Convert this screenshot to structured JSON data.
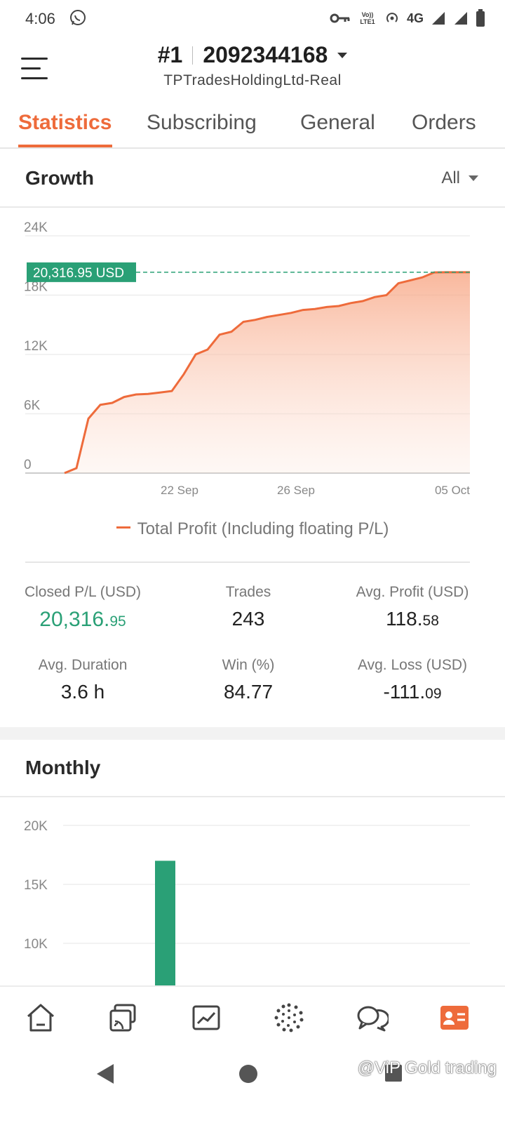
{
  "status_bar": {
    "time": "4:06",
    "network": "4G",
    "volte": "Vo)) LTE1"
  },
  "header": {
    "rank": "#1",
    "account_number": "2092344168",
    "server": "TPTradesHoldingLtd-Real"
  },
  "tabs": [
    {
      "label": "Statistics",
      "active": true
    },
    {
      "label": "Subscribing",
      "active": false
    },
    {
      "label": "General",
      "active": false
    },
    {
      "label": "Orders",
      "active": false
    }
  ],
  "growth": {
    "title": "Growth",
    "range": "All",
    "current_label": "20,316.95 USD",
    "legend": "Total Profit (Including floating P/L)"
  },
  "stats": {
    "closed_pl_label": "Closed P/L (USD)",
    "closed_pl_int": "20,316.",
    "closed_pl_dec": "95",
    "trades_label": "Trades",
    "trades_value": "243",
    "avg_profit_label": "Avg. Profit (USD)",
    "avg_profit_int": "118.",
    "avg_profit_dec": "58",
    "avg_duration_label": "Avg. Duration",
    "avg_duration_value": "3.6 h",
    "win_label": "Win (%)",
    "win_value": "84.77",
    "avg_loss_label": "Avg. Loss (USD)",
    "avg_loss_int": "-111.",
    "avg_loss_dec": "09"
  },
  "monthly": {
    "title": "Monthly"
  },
  "colors": {
    "accent": "#ee6b3b",
    "green": "#2aa076",
    "grid": "#eeeeee"
  },
  "bottom_nav": [
    "home-icon",
    "copy-trade-icon",
    "chart-icon",
    "community-icon",
    "chat-icon",
    "profile-card-icon"
  ],
  "watermark": "@ViP Gold trading",
  "chart_data": [
    {
      "type": "area",
      "series": [
        {
          "name": "Total Profit (Including floating P/L)",
          "x": [
            "17 Sep",
            "17.5 Sep",
            "18 Sep",
            "18.5 Sep",
            "19 Sep",
            "19.5 Sep",
            "20 Sep",
            "20.5 Sep",
            "21 Sep",
            "21.3 Sep",
            "21.6 Sep",
            "22 Sep",
            "22.5 Sep",
            "23 Sep",
            "23.5 Sep",
            "24 Sep",
            "24.5 Sep",
            "25 Sep",
            "25.5 Sep",
            "26 Sep",
            "26.5 Sep",
            "27 Sep",
            "27.5 Sep",
            "28 Sep",
            "28.5 Sep",
            "29 Sep",
            "29.5 Sep",
            "30 Sep",
            "30.5 Sep",
            "01 Oct",
            "01.5 Oct",
            "02 Oct",
            "03 Oct",
            "04 Oct",
            "05 Oct"
          ],
          "values": [
            0,
            500,
            5500,
            6900,
            7100,
            7700,
            7950,
            8000,
            8150,
            8300,
            10000,
            12000,
            12500,
            14000,
            14300,
            15300,
            15500,
            15800,
            16000,
            16200,
            16500,
            16600,
            16800,
            16900,
            17200,
            17400,
            17800,
            18000,
            19200,
            19500,
            19800,
            20300,
            20316.95,
            20316.95,
            20316.95
          ]
        }
      ],
      "x_tick_labels": [
        "22 Sep",
        "26 Sep",
        "05 Oct"
      ],
      "y_ticks": [
        "0",
        "6K",
        "12K",
        "18K",
        "24K"
      ],
      "ylim": [
        0,
        24000
      ],
      "current_value": 20316.95,
      "grid": true
    },
    {
      "type": "bar",
      "categories": [
        "",
        "",
        "",
        "",
        "",
        "",
        "",
        "",
        "",
        "",
        "",
        ""
      ],
      "values": [
        0,
        0,
        0,
        0,
        0,
        0,
        0,
        0,
        17000,
        0,
        0,
        0
      ],
      "y_ticks": [
        "10K",
        "15K",
        "20K"
      ],
      "ylim": [
        7000,
        20000
      ],
      "grid": true
    }
  ]
}
